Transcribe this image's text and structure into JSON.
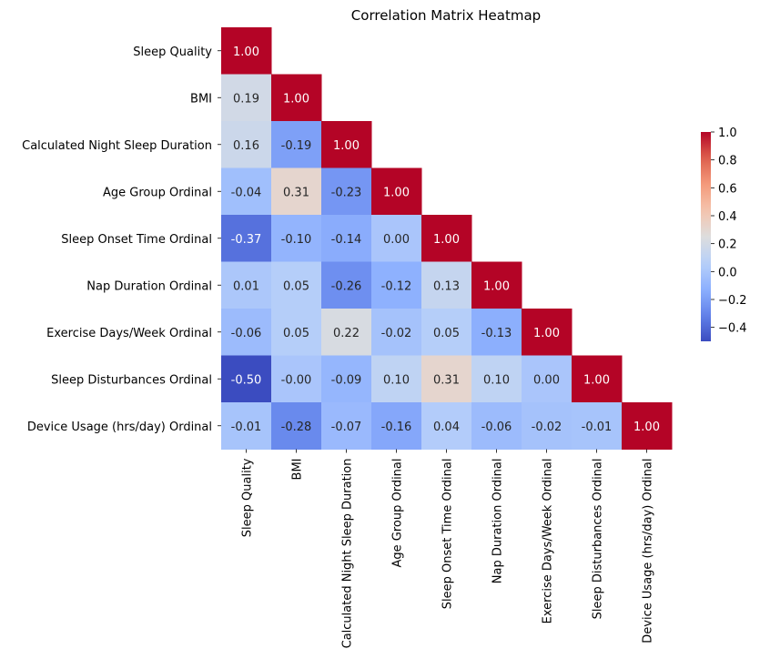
{
  "chart_data": {
    "type": "heatmap",
    "title": "Correlation Matrix Heatmap",
    "xlabel": "",
    "ylabel": "",
    "variables": [
      "Sleep Quality",
      "BMI",
      "Calculated Night Sleep Duration",
      "Age Group Ordinal",
      "Sleep Onset Time Ordinal",
      "Nap Duration Ordinal",
      "Exercise Days/Week Ordinal",
      "Sleep Disturbances Ordinal",
      "Device Usage (hrs/day) Ordinal"
    ],
    "matrix": [
      [
        1.0
      ],
      [
        0.19,
        1.0
      ],
      [
        0.16,
        -0.19,
        1.0
      ],
      [
        -0.04,
        0.31,
        -0.23,
        1.0
      ],
      [
        -0.37,
        -0.1,
        -0.14,
        0.0,
        1.0
      ],
      [
        0.01,
        0.05,
        -0.26,
        -0.12,
        0.13,
        1.0
      ],
      [
        -0.06,
        0.05,
        0.22,
        -0.02,
        0.05,
        -0.13,
        1.0
      ],
      [
        -0.5,
        -0.0,
        -0.09,
        0.1,
        0.31,
        0.1,
        0.0,
        1.0
      ],
      [
        -0.01,
        -0.28,
        -0.07,
        -0.16,
        0.04,
        -0.06,
        -0.02,
        -0.01,
        1.0
      ]
    ],
    "mask": "upper-triangle",
    "colormap": "coolwarm",
    "vmin": -0.5,
    "vmax": 1.0,
    "colorbar": {
      "ticks": [
        -0.4,
        -0.2,
        0.0,
        0.2,
        0.4,
        0.6,
        0.8,
        1.0
      ],
      "tick_labels": [
        "−0.4",
        "−0.2",
        "0.0",
        "0.2",
        "0.4",
        "0.6",
        "0.8",
        "1.0"
      ],
      "position": "right"
    },
    "value_format": "2 decimals",
    "grid": false
  }
}
